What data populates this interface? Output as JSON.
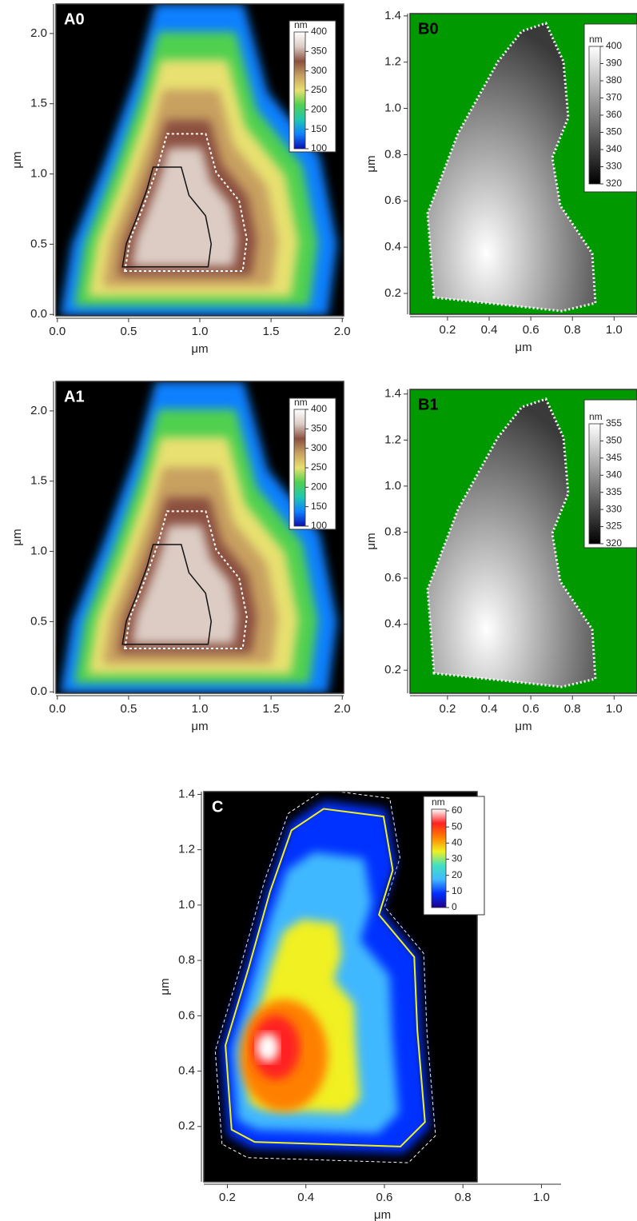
{
  "chart_data": [
    {
      "type": "heatmap",
      "title": "A0",
      "title_color": "#ffffff",
      "xlabel": "μm",
      "ylabel": "μm",
      "xlim": [
        -0.01,
        2.01
      ],
      "ylim": [
        -0.01,
        2.21
      ],
      "xticks": [
        {
          "value": 0,
          "label": "0.0"
        },
        0.5,
        {
          "value": 1,
          "label": "1.0"
        },
        1.5,
        {
          "value": 2,
          "label": "2.0"
        }
      ],
      "yticks": [
        {
          "value": 0,
          "label": "0.0"
        },
        0.5,
        {
          "value": 1,
          "label": "1.0"
        },
        1.5,
        {
          "value": 2,
          "label": "2.0"
        }
      ],
      "background": "#000000",
      "colorbar": {
        "label": "nm",
        "lim": [
          100,
          400
        ],
        "ticks": [
          100,
          150,
          200,
          250,
          300,
          350,
          400
        ],
        "colors": [
          "#0a10b0",
          "#1080ff",
          "#20c8b0",
          "#50d050",
          "#e8e070",
          "#c8a060",
          "#8a5040",
          "#dcccc4",
          "#ffffff"
        ]
      }
    },
    {
      "type": "heatmap",
      "title": "B0",
      "title_color": "#000000",
      "xlabel": "μm",
      "ylabel": "μm",
      "xlim": [
        0.02,
        1.11
      ],
      "ylim": [
        0.11,
        1.41
      ],
      "xticks": [
        0.2,
        0.4,
        0.6,
        0.8,
        {
          "value": 1,
          "label": "1.0"
        }
      ],
      "yticks": [
        0.2,
        0.4,
        0.6,
        0.8,
        {
          "value": 1,
          "label": "1.0"
        },
        1.2,
        1.4
      ],
      "background": "#009a00",
      "colorbar": {
        "label": "nm",
        "lim": [
          320,
          400
        ],
        "ticks": [
          320,
          330,
          340,
          350,
          360,
          370,
          380,
          390,
          400
        ],
        "colors": [
          "#000000",
          "#ffffff"
        ]
      }
    },
    {
      "type": "heatmap",
      "title": "A1",
      "title_color": "#ffffff",
      "xlabel": "μm",
      "ylabel": "μm",
      "xlim": [
        -0.01,
        2.01
      ],
      "ylim": [
        -0.01,
        2.21
      ],
      "xticks": [
        {
          "value": 0,
          "label": "0.0"
        },
        0.5,
        {
          "value": 1,
          "label": "1.0"
        },
        1.5,
        {
          "value": 2,
          "label": "2.0"
        }
      ],
      "yticks": [
        {
          "value": 0,
          "label": "0.0"
        },
        0.5,
        {
          "value": 1,
          "label": "1.0"
        },
        1.5,
        {
          "value": 2,
          "label": "2.0"
        }
      ],
      "background": "#000000",
      "colorbar": {
        "label": "nm",
        "lim": [
          100,
          400
        ],
        "ticks": [
          100,
          150,
          200,
          250,
          300,
          350,
          400
        ],
        "colors": [
          "#0a10b0",
          "#1080ff",
          "#20c8b0",
          "#50d050",
          "#e8e070",
          "#c8a060",
          "#8a5040",
          "#dcccc4",
          "#ffffff"
        ]
      }
    },
    {
      "type": "heatmap",
      "title": "B1",
      "title_color": "#000000",
      "xlabel": "μm",
      "ylabel": "μm",
      "xlim": [
        0.02,
        1.11
      ],
      "ylim": [
        0.1,
        1.42
      ],
      "xticks": [
        0.2,
        0.4,
        0.6,
        0.8,
        {
          "value": 1,
          "label": "1.0"
        }
      ],
      "yticks": [
        0.2,
        0.4,
        0.6,
        0.8,
        {
          "value": 1,
          "label": "1.0"
        },
        1.2,
        1.4
      ],
      "background": "#009a00",
      "colorbar": {
        "label": "nm",
        "lim": [
          320,
          355
        ],
        "ticks": [
          320,
          325,
          330,
          335,
          340,
          345,
          350,
          355
        ],
        "colors": [
          "#000000",
          "#ffffff"
        ]
      }
    },
    {
      "type": "heatmap",
      "title": "C",
      "title_color": "#ffffff",
      "xlabel": "μm",
      "ylabel": "μm",
      "xlim": [
        0.14,
        1.05
      ],
      "ylim": [
        0,
        1.41
      ],
      "xticks": [
        0.2,
        0.4,
        0.6,
        0.8,
        {
          "value": 1,
          "label": "1.0"
        }
      ],
      "yticks": [
        0.2,
        0.4,
        0.6,
        0.8,
        {
          "value": 1,
          "label": "1.0"
        },
        1.2,
        1.4
      ],
      "background": "#000000",
      "colorbar": {
        "label": "nm",
        "lim": [
          0,
          61
        ],
        "ticks": [
          0,
          10,
          20,
          30,
          40,
          50,
          60
        ],
        "colors": [
          "#20008a",
          "#0030ff",
          "#40b8ff",
          "#40e0c0",
          "#f0f020",
          "#ff8000",
          "#ff2020",
          "#ffffff"
        ]
      }
    }
  ]
}
